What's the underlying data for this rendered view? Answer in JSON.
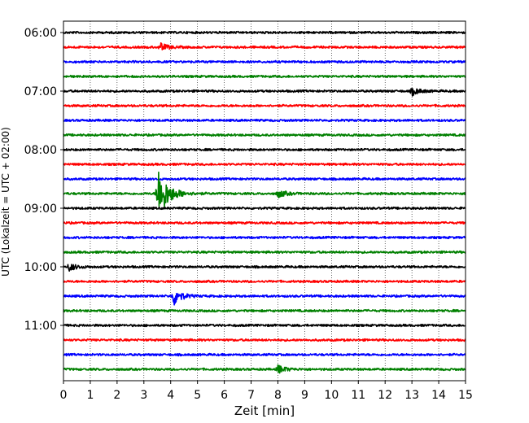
{
  "chart_data": {
    "type": "line",
    "subtype": "helicorder",
    "xlabel": "Zeit  [min]",
    "ylabel": "UTC (Lokalzeit = UTC + 02:00)",
    "xlim": [
      0,
      15
    ],
    "x_ticks": [
      0,
      1,
      2,
      3,
      4,
      5,
      6,
      7,
      8,
      9,
      10,
      11,
      12,
      13,
      14,
      15
    ],
    "y_ticks": [
      "06:00",
      "07:00",
      "08:00",
      "09:00",
      "10:00",
      "11:00"
    ],
    "grid": "vertical dotted",
    "trace_minutes": 15,
    "trace_start": "06:00",
    "trace_count": 24,
    "color_cycle": [
      "#000000",
      "#ff0000",
      "#0000ff",
      "#008000"
    ],
    "events": [
      {
        "trace": 1,
        "minute": 3.6,
        "amplitude": "small"
      },
      {
        "trace": 4,
        "minute": 13.0,
        "amplitude": "small"
      },
      {
        "trace": 11,
        "minute": 3.5,
        "amplitude": "large"
      },
      {
        "trace": 11,
        "minute": 8.0,
        "amplitude": "small"
      },
      {
        "trace": 16,
        "minute": 0.2,
        "amplitude": "small"
      },
      {
        "trace": 18,
        "minute": 4.1,
        "amplitude": "medium"
      },
      {
        "trace": 23,
        "minute": 8.0,
        "amplitude": "small"
      }
    ]
  }
}
